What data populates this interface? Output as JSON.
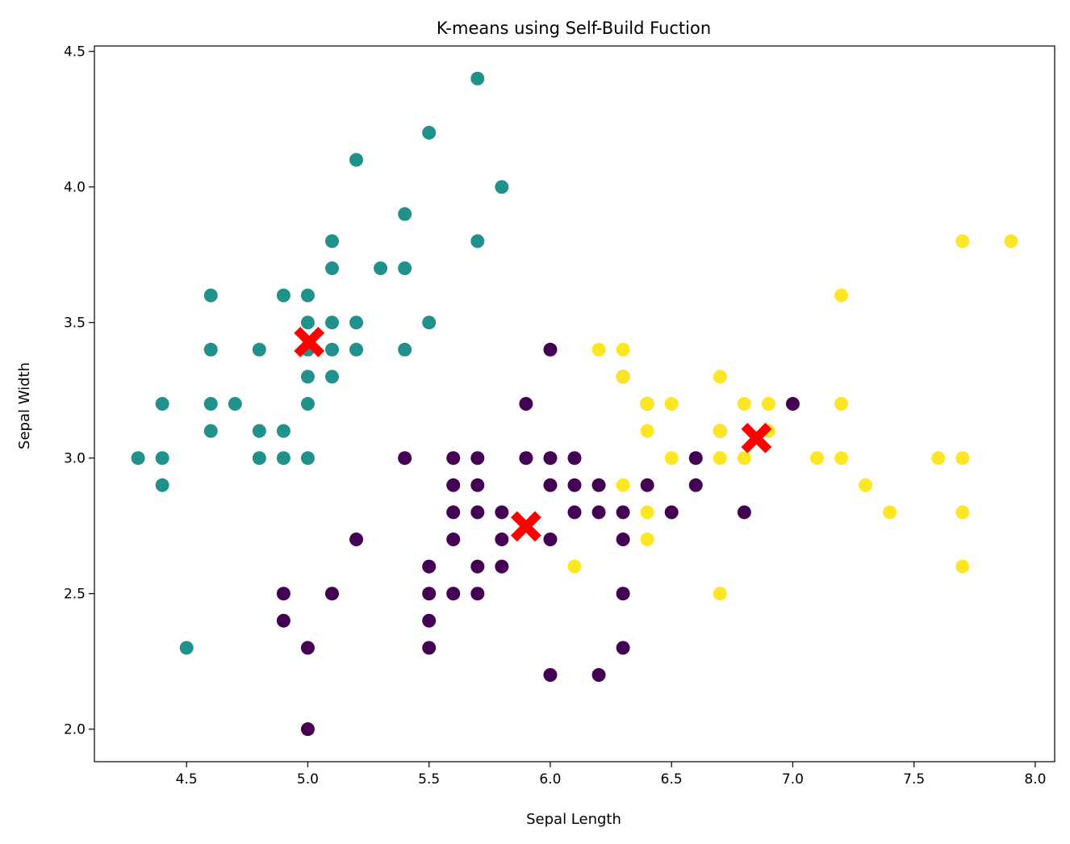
{
  "chart_data": {
    "type": "scatter",
    "title": "K-means using Self-Build Fuction",
    "xlabel": "Sepal Length",
    "ylabel": "Sepal Width",
    "xlim": [
      4.12,
      8.08
    ],
    "ylim": [
      1.88,
      4.52
    ],
    "xticks": [
      "4.5",
      "5.0",
      "5.5",
      "6.0",
      "6.5",
      "7.0",
      "7.5",
      "8.0"
    ],
    "yticks": [
      "2.0",
      "2.5",
      "3.0",
      "3.5",
      "4.0",
      "4.5"
    ],
    "grid": false,
    "legend": "none",
    "colors": {
      "cluster_0": "#440154",
      "cluster_1": "#21918c",
      "cluster_2": "#fde725",
      "centroid": "#ff0000"
    },
    "series": [
      {
        "cluster": 0,
        "points": [
          [
            4.9,
            2.5
          ],
          [
            4.9,
            2.4
          ],
          [
            5.0,
            2.3
          ],
          [
            5.0,
            2.0
          ],
          [
            5.1,
            2.5
          ],
          [
            5.2,
            2.7
          ],
          [
            5.4,
            3.0
          ],
          [
            5.5,
            2.6
          ],
          [
            5.5,
            2.5
          ],
          [
            5.5,
            2.4
          ],
          [
            5.5,
            2.3
          ],
          [
            5.6,
            3.0
          ],
          [
            5.6,
            2.9
          ],
          [
            5.6,
            2.8
          ],
          [
            5.6,
            2.7
          ],
          [
            5.6,
            2.5
          ],
          [
            5.7,
            3.0
          ],
          [
            5.7,
            2.9
          ],
          [
            5.7,
            2.8
          ],
          [
            5.7,
            2.6
          ],
          [
            5.7,
            2.5
          ],
          [
            5.8,
            2.8
          ],
          [
            5.8,
            2.7
          ],
          [
            5.8,
            2.6
          ],
          [
            5.9,
            3.2
          ],
          [
            5.9,
            3.0
          ],
          [
            6.0,
            3.4
          ],
          [
            6.0,
            3.0
          ],
          [
            6.0,
            2.9
          ],
          [
            6.0,
            2.7
          ],
          [
            6.0,
            2.2
          ],
          [
            6.1,
            3.0
          ],
          [
            6.1,
            2.9
          ],
          [
            6.1,
            2.8
          ],
          [
            6.2,
            2.9
          ],
          [
            6.2,
            2.8
          ],
          [
            6.2,
            2.2
          ],
          [
            6.3,
            3.3
          ],
          [
            6.3,
            2.8
          ],
          [
            6.3,
            2.7
          ],
          [
            6.3,
            2.5
          ],
          [
            6.3,
            2.3
          ],
          [
            6.4,
            3.2
          ],
          [
            6.4,
            2.9
          ],
          [
            6.5,
            2.8
          ],
          [
            6.6,
            3.0
          ],
          [
            6.6,
            2.9
          ],
          [
            6.7,
            3.1
          ],
          [
            6.8,
            2.8
          ],
          [
            7.0,
            3.2
          ]
        ]
      },
      {
        "cluster": 1,
        "points": [
          [
            4.3,
            3.0
          ],
          [
            4.4,
            3.2
          ],
          [
            4.4,
            3.0
          ],
          [
            4.4,
            2.9
          ],
          [
            4.5,
            2.3
          ],
          [
            4.6,
            3.6
          ],
          [
            4.6,
            3.4
          ],
          [
            4.6,
            3.2
          ],
          [
            4.6,
            3.1
          ],
          [
            4.7,
            3.2
          ],
          [
            4.8,
            3.4
          ],
          [
            4.8,
            3.1
          ],
          [
            4.8,
            3.0
          ],
          [
            4.9,
            3.6
          ],
          [
            4.9,
            3.1
          ],
          [
            4.9,
            3.0
          ],
          [
            5.0,
            3.6
          ],
          [
            5.0,
            3.5
          ],
          [
            5.0,
            3.4
          ],
          [
            5.0,
            3.3
          ],
          [
            5.0,
            3.2
          ],
          [
            5.0,
            3.0
          ],
          [
            5.1,
            3.8
          ],
          [
            5.1,
            3.7
          ],
          [
            5.1,
            3.5
          ],
          [
            5.1,
            3.4
          ],
          [
            5.1,
            3.3
          ],
          [
            5.2,
            4.1
          ],
          [
            5.2,
            3.5
          ],
          [
            5.2,
            3.4
          ],
          [
            5.3,
            3.7
          ],
          [
            5.4,
            3.9
          ],
          [
            5.4,
            3.7
          ],
          [
            5.4,
            3.4
          ],
          [
            5.5,
            4.2
          ],
          [
            5.5,
            3.5
          ],
          [
            5.7,
            4.4
          ],
          [
            5.7,
            3.8
          ],
          [
            5.8,
            4.0
          ]
        ]
      },
      {
        "cluster": 2,
        "points": [
          [
            6.1,
            2.6
          ],
          [
            6.2,
            3.4
          ],
          [
            6.3,
            3.4
          ],
          [
            6.3,
            3.3
          ],
          [
            6.3,
            2.9
          ],
          [
            6.4,
            3.2
          ],
          [
            6.4,
            3.1
          ],
          [
            6.4,
            2.8
          ],
          [
            6.4,
            2.7
          ],
          [
            6.5,
            3.2
          ],
          [
            6.5,
            3.0
          ],
          [
            6.7,
            3.3
          ],
          [
            6.7,
            3.1
          ],
          [
            6.7,
            3.0
          ],
          [
            6.7,
            2.5
          ],
          [
            6.8,
            3.2
          ],
          [
            6.8,
            3.0
          ],
          [
            6.9,
            3.2
          ],
          [
            6.9,
            3.1
          ],
          [
            7.1,
            3.0
          ],
          [
            7.2,
            3.6
          ],
          [
            7.2,
            3.2
          ],
          [
            7.2,
            3.0
          ],
          [
            7.3,
            2.9
          ],
          [
            7.4,
            2.8
          ],
          [
            7.6,
            3.0
          ],
          [
            7.7,
            3.8
          ],
          [
            7.7,
            3.0
          ],
          [
            7.7,
            2.8
          ],
          [
            7.7,
            2.6
          ],
          [
            7.9,
            3.8
          ]
        ]
      }
    ],
    "centroids": [
      [
        5.006,
        3.428
      ],
      [
        5.9,
        2.748
      ],
      [
        6.85,
        3.074
      ]
    ]
  }
}
